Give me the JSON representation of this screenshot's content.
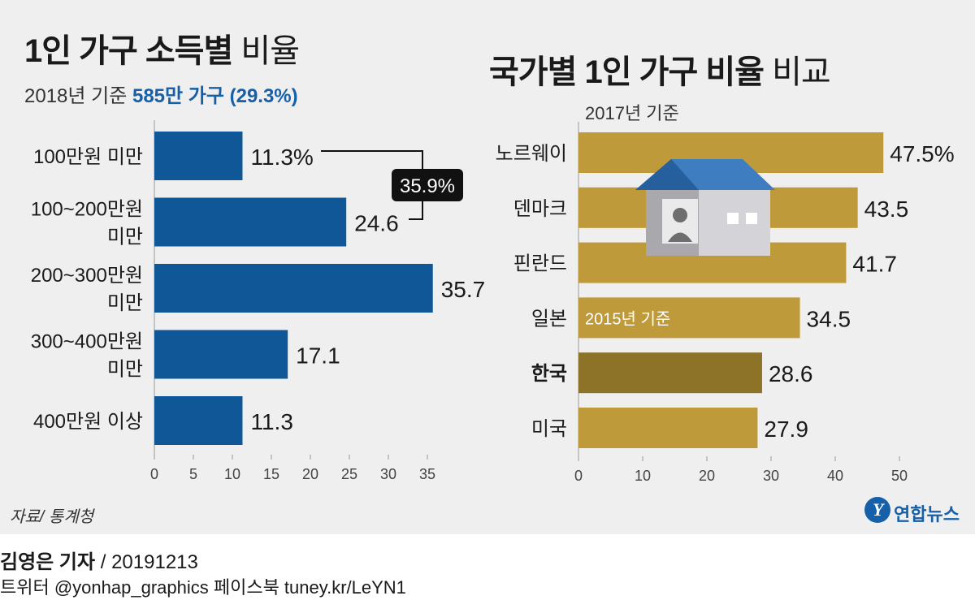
{
  "left_title_bold": "1인 가구 소득별",
  "left_title_light": "비율",
  "left_subtitle_pre": "2018년 기준",
  "left_subtitle_highlight": "585만 가구 (29.3%)",
  "right_title_bold": "국가별 1인 가구 비율",
  "right_title_light": "비교",
  "right_subtitle": "2017년 기준",
  "source": "자료/ 통계청",
  "logo": "연합뉴스",
  "logo_mark": "Y",
  "byline_name": "김영은 기자",
  "byline_date": " / 20191213",
  "sns": "트위터 @yonhap_graphics  페이스북 tuney.kr/LeYN1",
  "colors": {
    "left_bar": "#0f5796",
    "right_bar": "#bf9a3a",
    "right_bar_highlight": "#8c7328",
    "panel": "#efefef"
  },
  "chart_data": [
    {
      "type": "bar",
      "orientation": "horizontal",
      "categories": [
        "100만원 미만",
        "100~200만원\n미만",
        "200~300만원\n미만",
        "300~400만원\n미만",
        "400만원 이상"
      ],
      "values": [
        11.3,
        24.6,
        35.7,
        17.1,
        11.3
      ],
      "value_labels": [
        "11.3%",
        "24.6",
        "35.7",
        "17.1",
        "11.3"
      ],
      "xlim": [
        0,
        35
      ],
      "x_ticks": [
        "0",
        "5",
        "10",
        "15",
        "20",
        "25",
        "30",
        "35"
      ],
      "annotation": "35.9%"
    },
    {
      "type": "bar",
      "orientation": "horizontal",
      "categories": [
        "노르웨이",
        "덴마크",
        "핀란드",
        "일본",
        "한국",
        "미국"
      ],
      "values": [
        47.5,
        43.5,
        41.7,
        34.5,
        28.6,
        27.9
      ],
      "value_labels": [
        "47.5%",
        "43.5",
        "41.7",
        "34.5",
        "28.6",
        "27.9"
      ],
      "highlight": "한국",
      "bar_note": "2015년 기준",
      "xlim": [
        0,
        50
      ],
      "x_ticks": [
        "0",
        "10",
        "20",
        "30",
        "40",
        "50"
      ]
    }
  ]
}
